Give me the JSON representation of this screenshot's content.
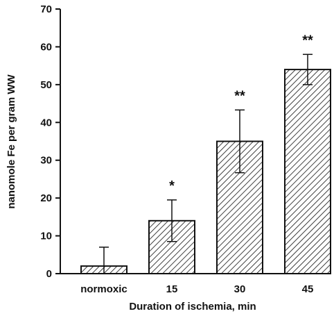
{
  "chart_data": {
    "type": "bar",
    "title": "",
    "xlabel": "Duration of ischemia, min",
    "ylabel": "nanomole Fe per gram WW",
    "categories": [
      "normoxic",
      "15",
      "30",
      "45"
    ],
    "values": [
      2,
      14,
      35,
      54
    ],
    "error": [
      5,
      5.5,
      8.3,
      4
    ],
    "significance": [
      "",
      "*",
      "**",
      "**"
    ],
    "ylim": [
      0,
      70
    ],
    "yticks": [
      "0",
      "10",
      "20",
      "30",
      "40",
      "50",
      "60",
      "70"
    ],
    "grid": false,
    "bar_pattern": "diagonal-hatch",
    "colors": {
      "bar_stroke": "#111111",
      "hatch": "#111111",
      "axis": "#111111"
    }
  }
}
